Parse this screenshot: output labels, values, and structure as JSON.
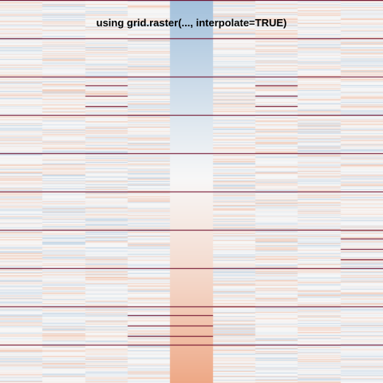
{
  "chart_data": {
    "type": "heatmap",
    "title": "using grid.raster(..., interpolate=TRUE)",
    "columns": 9,
    "rows": 10,
    "color_scale": {
      "low": "#6a9cc9",
      "mid": "#f7f7f7",
      "high": "#e8743b",
      "extreme": "#67001f"
    },
    "gradient_column": {
      "column": 5,
      "values_top_to_bottom": [
        -0.6,
        -0.45,
        -0.3,
        -0.15,
        -0.02,
        0.08,
        0.18,
        0.3,
        0.45,
        0.6
      ]
    },
    "row_boundary_color": "#67001f",
    "extreme_lines": [
      {
        "column": 3,
        "row": 3,
        "value": 1
      },
      {
        "column": 7,
        "row": 3,
        "value": 1
      },
      {
        "column": 4,
        "row": 9,
        "value": 1
      },
      {
        "column": 9,
        "row": 7,
        "value": 1
      },
      {
        "column": 5,
        "row": 9,
        "value": 1
      }
    ],
    "noise_amplitude": 0.35
  }
}
